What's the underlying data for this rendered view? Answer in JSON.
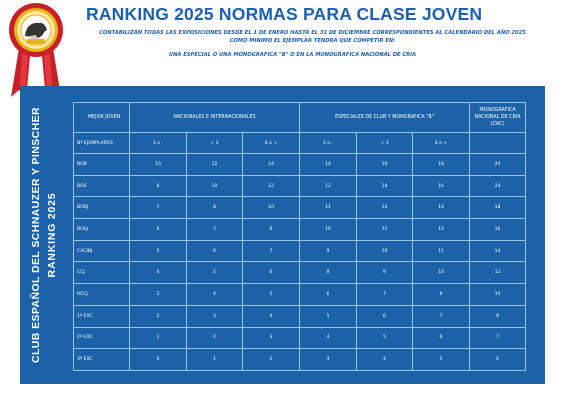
{
  "title": "RANKING 2025 NORMAS PARA CLASE JOVEN",
  "subtitle_line1": "CONTABILIZAN TODAS LAS EXPOSICIONES DESDE EL 1 DE ENERO HASTA EL 31 DE DICIEMBRE CORRESPONDIENTES AL CALENDARIO DEL AÑO 2025",
  "subtitle_line2": "COMO MINIMO EL EJEMPLAR TENDRA QUE COMPETIR EN:",
  "subtitle_line3": "UNA ESPECIAL  O  UNA MONOGRAFICA \"B\"  O  EN LA MONOGRAFICA NACIONAL DE CRIA",
  "side_title_line1": "CLUB ESPAÑOL DEL SCHNAUZER Y PINSCHER",
  "side_title_line2": "RANKING  2025",
  "colors": {
    "title_blue": "#1d5fb0",
    "panel_blue": "#1b62a8",
    "grid": "#9ec3e6",
    "ribbon_red": "#c8202a",
    "gold": "#e8b318"
  },
  "badge": {
    "icon": "club-rosette-medal-icon"
  },
  "table": {
    "header_top": {
      "col0": "MEJOR JOVEN",
      "group1": "NACIONALES  E  INTERNACIONALES",
      "group2": "ESPECIALES DE CLUB  Y MONGRAFICA \"B\"",
      "col_last": "MONOGRAFICA NACIONAL DE CRIA (CAC)"
    },
    "header_sub": [
      "Nº EJEMPLARES",
      "3 o -",
      "+ 3",
      "6 o +",
      "3 o -",
      "+ 3",
      "6 o +",
      ""
    ],
    "rows": [
      {
        "label": "BOB",
        "values": [
          "10",
          "12",
          "14",
          "14",
          "16",
          "18",
          "20"
        ]
      },
      {
        "label": "BOS",
        "values": [
          "8",
          "10",
          "12",
          "12",
          "14",
          "16",
          "24"
        ]
      },
      {
        "label": "BOBJ",
        "values": [
          "7",
          "8",
          "10",
          "11",
          "12",
          "14",
          "18"
        ]
      },
      {
        "label": "BOSJ",
        "values": [
          "6",
          "7",
          "8",
          "10",
          "11",
          "12",
          "16"
        ]
      },
      {
        "label": "CACIBJ",
        "values": [
          "5",
          "6",
          "7",
          "9",
          "10",
          "11",
          "14"
        ]
      },
      {
        "label": "CCJ",
        "values": [
          "4",
          "5",
          "6",
          "8",
          "9",
          "10",
          "12"
        ]
      },
      {
        "label": "RCCJ",
        "values": [
          "3",
          "4",
          "5",
          "6",
          "7",
          "8",
          "10"
        ]
      },
      {
        "label": "1º EXC.",
        "values": [
          "2",
          "3",
          "4",
          "5",
          "6",
          "7",
          "8"
        ]
      },
      {
        "label": "2º EXC.",
        "values": [
          "1",
          "2",
          "3",
          "4",
          "5",
          "6",
          "7"
        ]
      },
      {
        "label": "3º EXC",
        "values": [
          "0",
          "1",
          "2",
          "3",
          "4",
          "5",
          "6"
        ]
      }
    ]
  }
}
